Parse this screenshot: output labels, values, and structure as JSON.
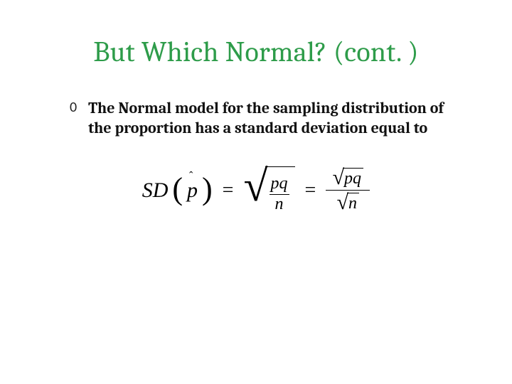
{
  "colors": {
    "title": "#2e9c4a",
    "text": "#111111",
    "background": "#ffffff",
    "formula": "#000000"
  },
  "typography": {
    "title_family": "Cambria",
    "title_size_pt": 32,
    "body_family": "Cambria",
    "body_size_pt": 18,
    "body_weight": "600",
    "formula_family": "Times New Roman",
    "formula_style": "italic"
  },
  "slide": {
    "title": "But Which Normal? (cont. )",
    "bullets": [
      {
        "marker": "0",
        "text": "The Normal model for the sampling distribution of the proportion has a standard deviation equal to"
      }
    ]
  },
  "formula": {
    "lhs_label": "SD",
    "param_symbol": "p",
    "param_hat": "ˆ",
    "eq": "=",
    "root_symbol": "√",
    "pq": "pq",
    "n": "n",
    "description": "SD(p-hat) = sqrt(pq/n) = sqrt(pq)/sqrt(n)"
  }
}
